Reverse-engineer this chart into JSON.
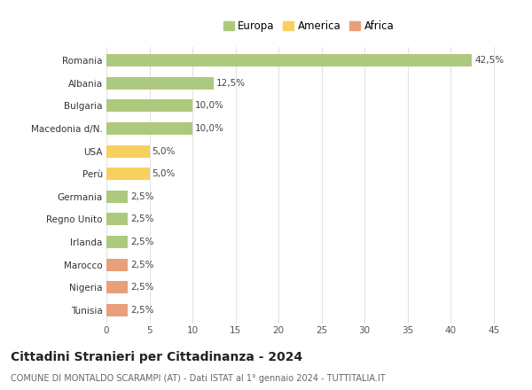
{
  "countries": [
    "Romania",
    "Albania",
    "Bulgaria",
    "Macedonia d/N.",
    "USA",
    "Perù",
    "Germania",
    "Regno Unito",
    "Irlanda",
    "Marocco",
    "Nigeria",
    "Tunisia"
  ],
  "values": [
    42.5,
    12.5,
    10.0,
    10.0,
    5.0,
    5.0,
    2.5,
    2.5,
    2.5,
    2.5,
    2.5,
    2.5
  ],
  "labels": [
    "42,5%",
    "12,5%",
    "10,0%",
    "10,0%",
    "5,0%",
    "5,0%",
    "2,5%",
    "2,5%",
    "2,5%",
    "2,5%",
    "2,5%",
    "2,5%"
  ],
  "continents": [
    "Europa",
    "Europa",
    "Europa",
    "Europa",
    "America",
    "America",
    "Europa",
    "Europa",
    "Europa",
    "Africa",
    "Africa",
    "Africa"
  ],
  "colors": {
    "Europa": "#adc97e",
    "America": "#f7d060",
    "Africa": "#e8a07a"
  },
  "legend_labels": [
    "Europa",
    "America",
    "Africa"
  ],
  "title": "Cittadini Stranieri per Cittadinanza - 2024",
  "subtitle": "COMUNE DI MONTALDO SCARAMPI (AT) - Dati ISTAT al 1° gennaio 2024 - TUTTITALIA.IT",
  "xlim": [
    0,
    47
  ],
  "xticks": [
    0,
    5,
    10,
    15,
    20,
    25,
    30,
    35,
    40,
    45
  ],
  "background_color": "#ffffff",
  "grid_color": "#e0e0e0",
  "label_fontsize": 7.5,
  "title_fontsize": 10,
  "subtitle_fontsize": 7,
  "tick_fontsize": 7.5,
  "bar_height": 0.55
}
